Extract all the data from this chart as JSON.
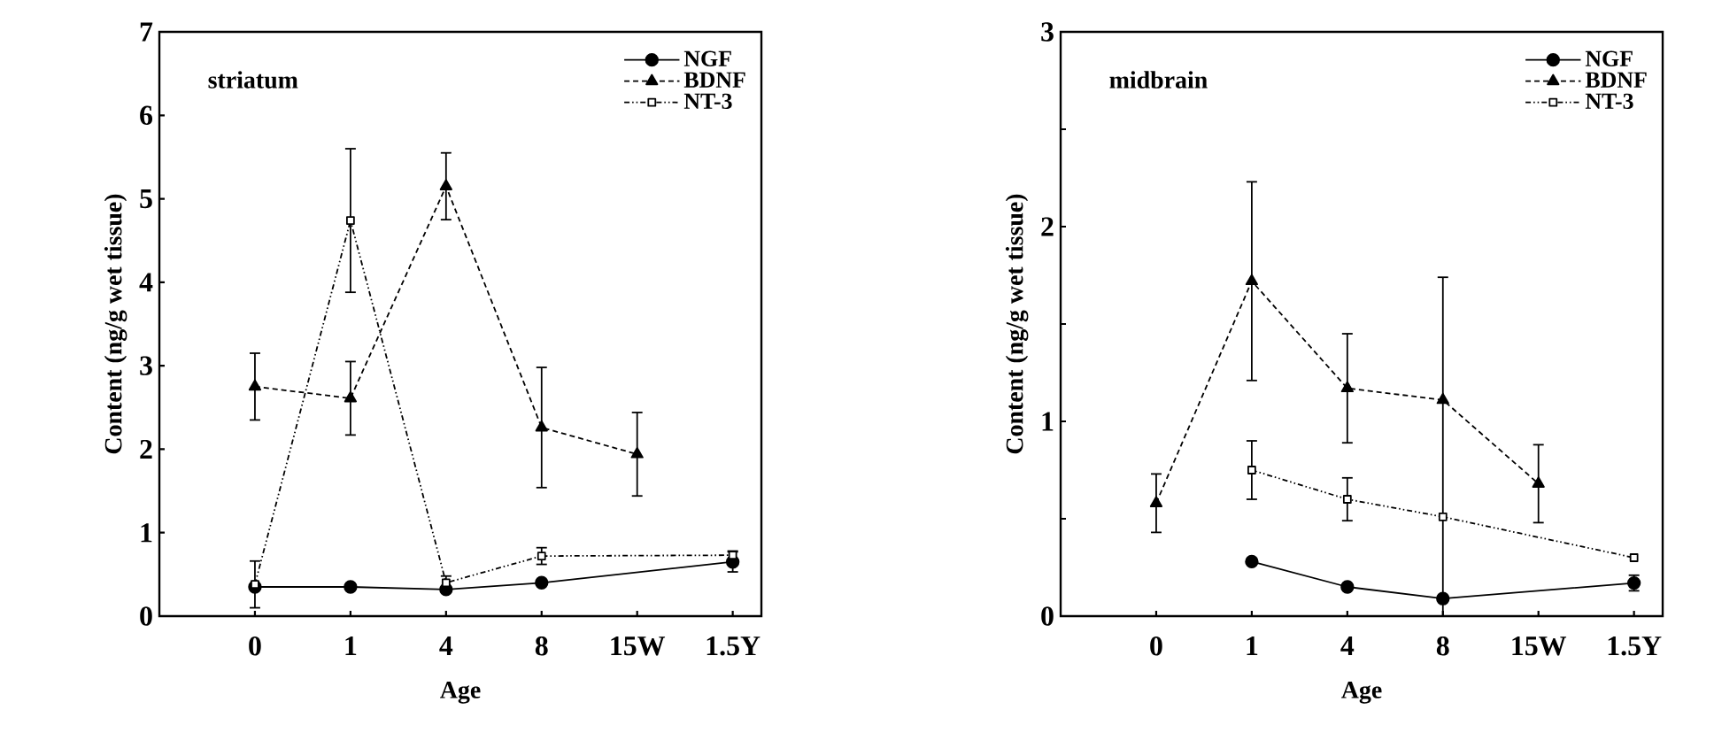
{
  "chart_data": [
    {
      "type": "line",
      "title": "striatum",
      "xlabel": "Age",
      "ylabel": "Content (ng/g wet tissue)",
      "categories": [
        "0",
        "1",
        "4",
        "8",
        "15W",
        "1.5Y"
      ],
      "ylim": [
        0,
        7
      ],
      "yticks": [
        0,
        1,
        2,
        3,
        4,
        5,
        6,
        7
      ],
      "legend": "top right",
      "series": [
        {
          "name": "NGF",
          "color": "#000000",
          "marker": "circle",
          "line_style": "solid",
          "values": [
            0.35,
            0.35,
            0.32,
            0.4,
            null,
            0.65
          ],
          "errors": [
            null,
            null,
            null,
            null,
            null,
            0.12
          ]
        },
        {
          "name": "BDNF",
          "color": "#000000",
          "marker": "triangle",
          "line_style": "dashed",
          "values": [
            2.75,
            2.61,
            5.15,
            2.26,
            1.94,
            null
          ],
          "errors": [
            0.4,
            0.44,
            0.4,
            0.72,
            0.5,
            null
          ]
        },
        {
          "name": "NT-3",
          "color": "#000000",
          "marker": "square",
          "line_style": "dashdotted",
          "values": [
            0.38,
            4.74,
            0.4,
            0.72,
            null,
            0.73
          ],
          "errors": [
            0.28,
            0.86,
            0.08,
            0.1,
            null,
            0.05
          ]
        }
      ]
    },
    {
      "type": "line",
      "title": "midbrain",
      "xlabel": "Age",
      "ylabel": "Content (ng/g wet tissue)",
      "categories": [
        "0",
        "1",
        "4",
        "8",
        "15W",
        "1.5Y"
      ],
      "ylim": [
        0,
        3
      ],
      "yticks": [
        0,
        {
          "value": 0.5,
          "label": null
        },
        1,
        {
          "value": 1.5,
          "label": null
        },
        2,
        {
          "value": 2.5,
          "label": null
        },
        3
      ],
      "legend": "top right",
      "series": [
        {
          "name": "NGF",
          "color": "#000000",
          "marker": "circle",
          "line_style": "solid",
          "values": [
            null,
            0.28,
            0.15,
            0.09,
            null,
            0.17
          ],
          "errors": [
            null,
            null,
            null,
            null,
            null,
            0.04
          ]
        },
        {
          "name": "BDNF",
          "color": "#000000",
          "marker": "triangle",
          "line_style": "dashed",
          "values": [
            0.58,
            1.72,
            1.17,
            1.11,
            0.68,
            null
          ],
          "errors": [
            0.15,
            0.51,
            0.28,
            [
              0,
              1.74
            ],
            0.2,
            null
          ]
        },
        {
          "name": "NT-3",
          "color": "#000000",
          "marker": "square",
          "line_style": "dashdotted",
          "values": [
            null,
            0.75,
            0.6,
            0.51,
            null,
            0.3
          ],
          "errors": [
            null,
            0.15,
            0.11,
            null,
            null,
            null
          ]
        }
      ]
    }
  ]
}
